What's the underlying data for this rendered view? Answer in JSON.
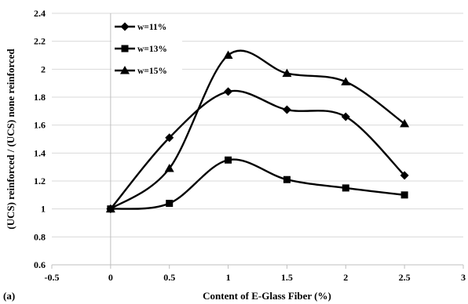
{
  "panel_label": "(a)",
  "chart_data": {
    "type": "line",
    "title": "",
    "xlabel": "Content of E-Glass Fiber (%)",
    "ylabel": "(UCS) reinforced / (UCS) none reinforced",
    "xlim": [
      -0.5,
      3
    ],
    "ylim": [
      0.6,
      2.4
    ],
    "xticks": [
      "-0.5",
      "0",
      "0.5",
      "1",
      "1.5",
      "2",
      "2.5",
      "3"
    ],
    "yticks": [
      "0.6",
      "0.8",
      "1",
      "1.2",
      "1.4",
      "1.6",
      "1.8",
      "2",
      "2.2",
      "2.4"
    ],
    "grid": "horizontal",
    "legend_position": "top-left",
    "x": [
      0,
      0.5,
      1,
      1.5,
      2,
      2.5
    ],
    "series": [
      {
        "name": "w=11%",
        "marker": "diamond",
        "values": [
          1.0,
          1.51,
          1.84,
          1.71,
          1.66,
          1.24
        ]
      },
      {
        "name": "w=13%",
        "marker": "square",
        "values": [
          1.0,
          1.04,
          1.35,
          1.21,
          1.15,
          1.1
        ]
      },
      {
        "name": "w=15%",
        "marker": "triangle",
        "values": [
          1.0,
          1.29,
          2.1,
          1.97,
          1.91,
          1.61
        ]
      }
    ],
    "colors": {
      "line": "#000000",
      "grid": "#d9d9d9",
      "axis": "#bfbfbf"
    }
  }
}
